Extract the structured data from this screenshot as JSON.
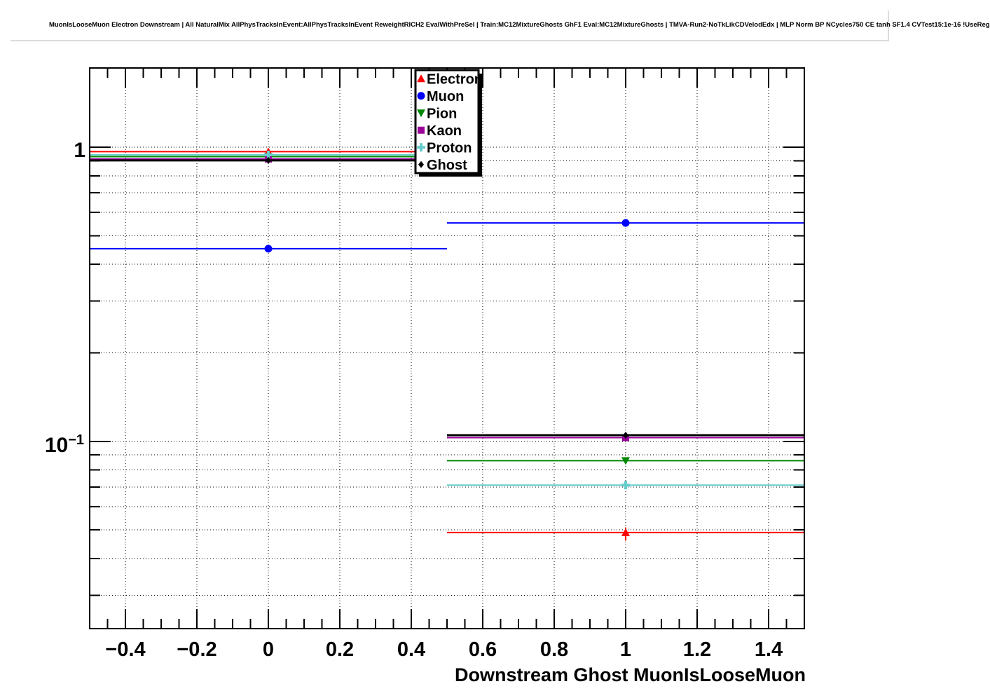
{
  "title": "MuonIsLooseMuon Electron Downstream | All NaturalMix AllPhysTracksInEvent:AllPhysTracksInEvent ReweightRICH2 EvalWithPreSel | Train:MC12MixtureGhosts GhF1 Eval:MC12MixtureGhosts | TMVA-Run2-NoTkLikCDVelodEdx | MLP Norm BP NCycles750 CE tanh SF1.4 CVTest15:1e-16 !UseReg",
  "chart_data": {
    "type": "scatter",
    "title": "",
    "xlabel": "Downstream Ghost MuonIsLooseMuon",
    "ylabel": "",
    "yscale": "log",
    "xlim": [
      -0.5,
      1.5
    ],
    "ylim": [
      0.0231,
      1.86
    ],
    "grid": true,
    "legend_position": "top-inside",
    "x": [
      0,
      1
    ],
    "x_bin_edges": [
      -0.5,
      0.5,
      1.5
    ],
    "x_major_ticks": [
      -0.4,
      -0.2,
      0,
      0.2,
      0.4,
      0.6,
      0.8,
      1,
      1.2,
      1.4
    ],
    "x_tick_labels": [
      "−0.4",
      "−0.2",
      "0",
      "0.2",
      "0.4",
      "0.6",
      "0.8",
      "1",
      "1.2",
      "1.4"
    ],
    "x_minor_tick_step": 0.05,
    "y_major_ticks": [
      1,
      0.1
    ],
    "y_tick_labels": [
      {
        "base": "1",
        "exp": ""
      },
      {
        "base": "10",
        "exp": "−1"
      }
    ],
    "y_minor_ticks": [
      0.9,
      0.8,
      0.7,
      0.6,
      0.5,
      0.4,
      0.3,
      0.2,
      0.09,
      0.08,
      0.07,
      0.06,
      0.05,
      0.04,
      0.03
    ],
    "series": [
      {
        "name": "Electron",
        "color": "#ff0000",
        "marker": "triangle-up",
        "values": [
          0.966,
          0.049
        ],
        "yerr": [
          [
            0.951,
            0.984
          ],
          [
            0.046,
            0.051
          ]
        ]
      },
      {
        "name": "Muon",
        "color": "#0000ff",
        "marker": "circle",
        "values": [
          0.452,
          0.553
        ],
        "yerr": null
      },
      {
        "name": "Pion",
        "color": "#008800",
        "marker": "triangle-down",
        "values": [
          0.929,
          0.086
        ],
        "yerr": null
      },
      {
        "name": "Kaon",
        "color": "#990099",
        "marker": "square",
        "values": [
          0.912,
          0.103
        ],
        "yerr": null
      },
      {
        "name": "Proton",
        "color": "#66cccc",
        "marker": "cross",
        "values": [
          0.942,
          0.071
        ],
        "yerr": null
      },
      {
        "name": "Ghost",
        "color": "#000000",
        "marker": "diamond",
        "values": [
          0.902,
          0.105
        ],
        "yerr": null
      }
    ]
  }
}
